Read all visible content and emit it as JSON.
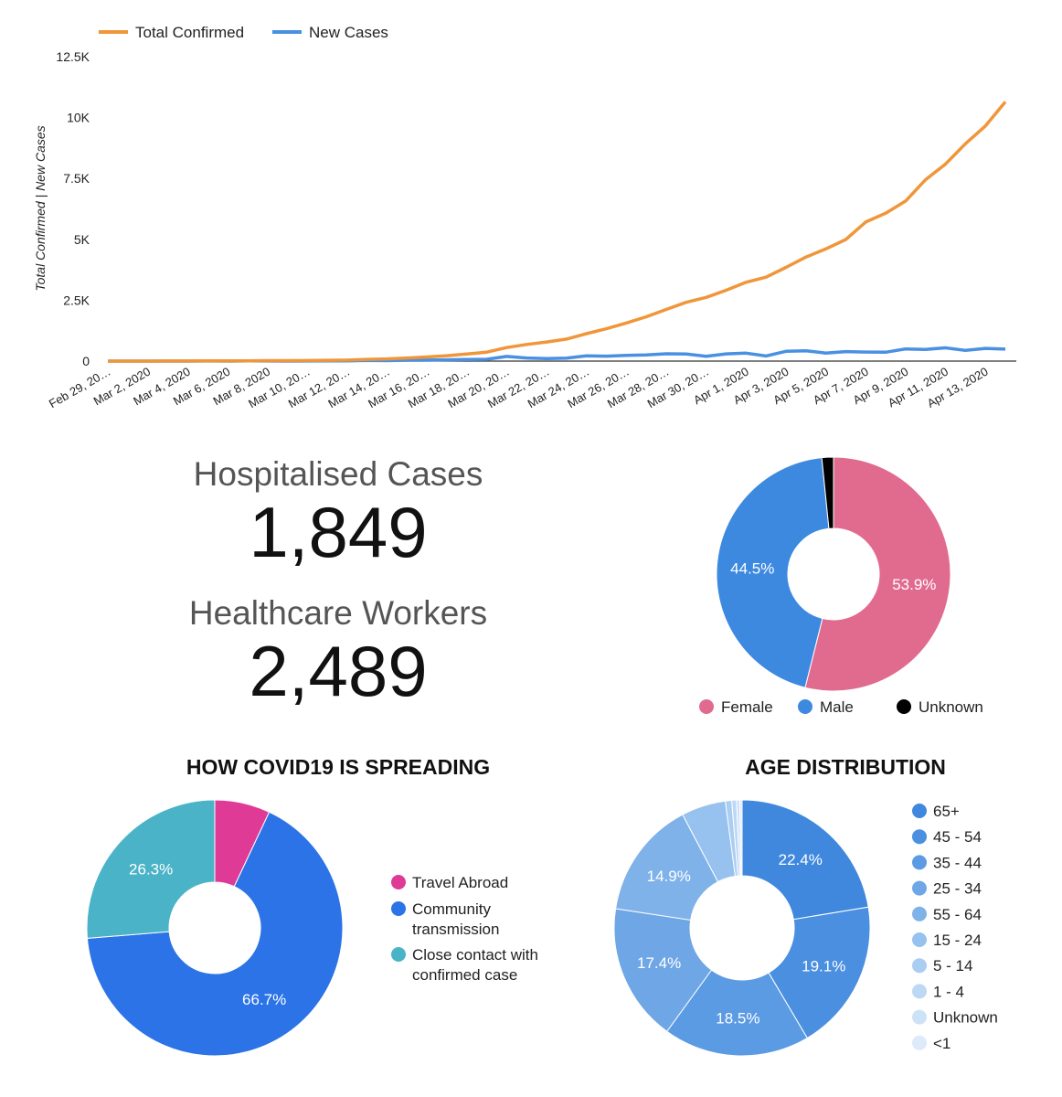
{
  "line_chart": {
    "type": "line",
    "ylabel": "Total Confirmed | New Cases",
    "ylim": [
      0,
      12500
    ],
    "yticks": [
      0,
      2500,
      5000,
      7500,
      10000,
      12500
    ],
    "ytick_labels": [
      "0",
      "2.5K",
      "5K",
      "7.5K",
      "10K",
      "12.5K"
    ],
    "x_tick_labels": [
      "Feb 29, 20…",
      "Mar 2, 2020",
      "Mar 4, 2020",
      "Mar 6, 2020",
      "Mar 8, 2020",
      "Mar 10, 20…",
      "Mar 12, 20…",
      "Mar 14, 20…",
      "Mar 16, 20…",
      "Mar 18, 20…",
      "Mar 20, 20…",
      "Mar 22, 20…",
      "Mar 24, 20…",
      "Mar 26, 20…",
      "Mar 28, 20…",
      "Mar 30, 20…",
      "Apr 1, 2020",
      "Apr 3, 2020",
      "Apr 5, 2020",
      "Apr 7, 2020",
      "Apr 9, 2020",
      "Apr 11, 2020",
      "Apr 13, 2020"
    ],
    "x": [
      "Feb 29",
      "Mar 1",
      "Mar 2",
      "Mar 3",
      "Mar 4",
      "Mar 5",
      "Mar 6",
      "Mar 7",
      "Mar 8",
      "Mar 9",
      "Mar 10",
      "Mar 11",
      "Mar 12",
      "Mar 13",
      "Mar 14",
      "Mar 15",
      "Mar 16",
      "Mar 17",
      "Mar 18",
      "Mar 19",
      "Mar 20",
      "Mar 21",
      "Mar 22",
      "Mar 23",
      "Mar 24",
      "Mar 25",
      "Mar 26",
      "Mar 27",
      "Mar 28",
      "Mar 29",
      "Mar 30",
      "Mar 31",
      "Apr 1",
      "Apr 2",
      "Apr 3",
      "Apr 4",
      "Apr 5",
      "Apr 6",
      "Apr 7",
      "Apr 8",
      "Apr 9",
      "Apr 10",
      "Apr 11",
      "Apr 12",
      "Apr 13",
      "Apr 14"
    ],
    "legend_position": "top-left",
    "series": [
      {
        "name": "Total Confirmed",
        "color": "#f0963a",
        "values": [
          1,
          1,
          1,
          2,
          3,
          6,
          7,
          13,
          18,
          19,
          24,
          34,
          43,
          70,
          90,
          129,
          169,
          223,
          292,
          366,
          557,
          683,
          785,
          906,
          1125,
          1329,
          1564,
          1819,
          2121,
          2415,
          2615,
          2910,
          3235,
          3447,
          3849,
          4273,
          4604,
          4994,
          5709,
          6074,
          6574,
          7446,
          8089,
          8928,
          9655,
          10647
        ]
      },
      {
        "name": "New Cases",
        "color": "#4a90e2",
        "values": [
          0,
          0,
          0,
          1,
          1,
          3,
          1,
          6,
          5,
          1,
          5,
          10,
          9,
          27,
          20,
          39,
          40,
          54,
          69,
          74,
          191,
          126,
          102,
          121,
          219,
          204,
          235,
          255,
          302,
          294,
          200,
          295,
          325,
          212,
          402,
          424,
          331,
          390,
          370,
          365,
          500,
          480,
          543,
          439,
          520,
          492
        ]
      }
    ]
  },
  "kpis": {
    "hospitalised_label": "Hospitalised Cases",
    "hospitalised_value": "1,849",
    "workers_label": "Healthcare Workers",
    "workers_value": "2,489"
  },
  "gender_chart": {
    "type": "pie",
    "slices": [
      {
        "label": "Female",
        "value": 53.9,
        "color": "#e16b8f",
        "text": "53.9%"
      },
      {
        "label": "Male",
        "value": 44.5,
        "color": "#3e89e0",
        "text": "44.5%"
      },
      {
        "label": "Unknown",
        "value": 1.6,
        "color": "#000000",
        "text": ""
      }
    ],
    "legend_position": "bottom"
  },
  "spread_chart": {
    "type": "pie",
    "title": "HOW COVID19 IS SPREADING",
    "slices": [
      {
        "label": "Travel Abroad",
        "value": 7.0,
        "color": "#e03a97",
        "text": ""
      },
      {
        "label": "Community transmission",
        "value": 66.7,
        "color": "#2b73e6",
        "text": "66.7%"
      },
      {
        "label": "Close contact with confirmed case",
        "value": 26.3,
        "color": "#4bb3c8",
        "text": "26.3%"
      }
    ],
    "legend": [
      {
        "line1": "Travel Abroad",
        "line2": ""
      },
      {
        "line1": "Community",
        "line2": "transmission"
      },
      {
        "line1": "Close contact with",
        "line2": "confirmed case"
      }
    ],
    "legend_position": "right"
  },
  "age_chart": {
    "type": "pie",
    "title": "AGE DISTRIBUTION",
    "slices": [
      {
        "label": "65+",
        "value": 22.4,
        "color": "#3f88de",
        "text": "22.4%"
      },
      {
        "label": "45 - 54",
        "value": 19.1,
        "color": "#4a8fe0",
        "text": "19.1%"
      },
      {
        "label": "35 - 44",
        "value": 18.5,
        "color": "#5b9be4",
        "text": "18.5%"
      },
      {
        "label": "25 - 34",
        "value": 17.4,
        "color": "#6fa6e6",
        "text": "17.4%"
      },
      {
        "label": "55 - 64",
        "value": 14.9,
        "color": "#80b2ea",
        "text": "14.9%"
      },
      {
        "label": "15 - 24",
        "value": 5.6,
        "color": "#97c1ee",
        "text": ""
      },
      {
        "label": "5 - 14",
        "value": 0.8,
        "color": "#aacdf2",
        "text": ""
      },
      {
        "label": "1 - 4",
        "value": 0.6,
        "color": "#bcd8f5",
        "text": ""
      },
      {
        "label": "Unknown",
        "value": 0.4,
        "color": "#cce2f7",
        "text": ""
      },
      {
        "label": "<1",
        "value": 0.3,
        "color": "#dceafa",
        "text": ""
      }
    ],
    "legend_position": "right"
  }
}
